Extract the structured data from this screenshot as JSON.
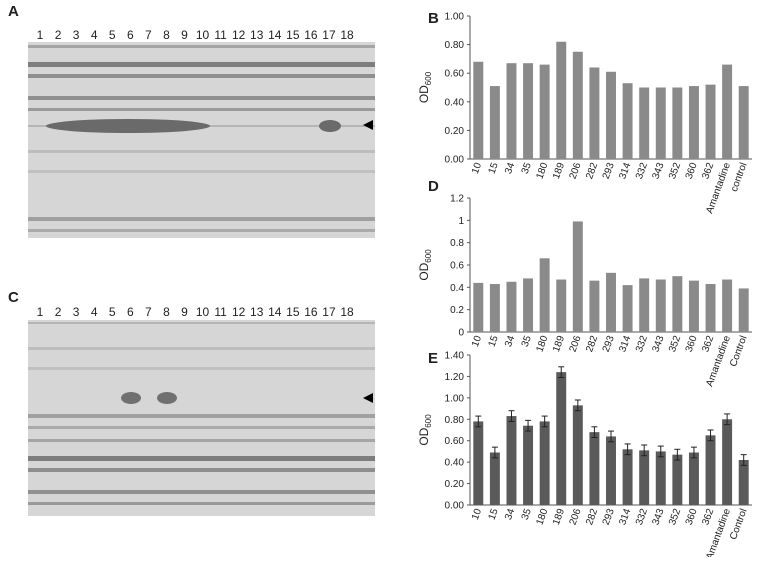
{
  "gels": [
    {
      "label": "A",
      "lanes": [
        "1",
        "2",
        "3",
        "4",
        "5",
        "6",
        "7",
        "8",
        "9",
        "10",
        "11",
        "12",
        "13",
        "14",
        "15",
        "16",
        "17",
        "18"
      ]
    },
    {
      "label": "C",
      "lanes": [
        "1",
        "2",
        "3",
        "4",
        "5",
        "6",
        "7",
        "8",
        "9",
        "10",
        "11",
        "12",
        "13",
        "14",
        "15",
        "16",
        "17",
        "18"
      ]
    }
  ],
  "chart_data": [
    {
      "type": "bar",
      "panel": "B",
      "ylabel": "OD",
      "ylabel_sub": "600",
      "color": "#8a8a8a",
      "categories": [
        "10",
        "15",
        "34",
        "35",
        "180",
        "189",
        "206",
        "282",
        "293",
        "314",
        "332",
        "343",
        "352",
        "360",
        "362",
        "Amantadine",
        "control"
      ],
      "values": [
        0.68,
        0.51,
        0.67,
        0.67,
        0.66,
        0.82,
        0.75,
        0.64,
        0.61,
        0.53,
        0.5,
        0.5,
        0.5,
        0.51,
        0.52,
        0.66,
        0.51
      ],
      "ylim": [
        0,
        1
      ],
      "yticks": [
        {
          "value": 0,
          "label": "0.00"
        },
        {
          "value": 0.2,
          "label": "0.20"
        },
        {
          "value": 0.4,
          "label": "0.40"
        },
        {
          "value": 0.6,
          "label": "0.60"
        },
        {
          "value": 0.8,
          "label": "0.80"
        },
        {
          "value": 1,
          "label": "1.00"
        }
      ]
    },
    {
      "type": "bar",
      "panel": "D",
      "ylabel": "OD",
      "ylabel_sub": "600",
      "color": "#8a8a8a",
      "categories": [
        "10",
        "15",
        "34",
        "35",
        "180",
        "189",
        "206",
        "282",
        "293",
        "314",
        "332",
        "343",
        "352",
        "360",
        "362",
        "Amantadine",
        "Control"
      ],
      "values": [
        0.44,
        0.43,
        0.45,
        0.48,
        0.66,
        0.47,
        0.99,
        0.46,
        0.53,
        0.42,
        0.48,
        0.47,
        0.5,
        0.46,
        0.43,
        0.47,
        0.39
      ],
      "ylim": [
        0,
        1.2
      ],
      "yticks": [
        0,
        0.2,
        0.4,
        0.6,
        0.8,
        1,
        1.2
      ]
    },
    {
      "type": "bar",
      "panel": "E",
      "ylabel": "OD",
      "ylabel_sub": "600",
      "color": "#5a5a5a",
      "categories": [
        "10",
        "15",
        "34",
        "35",
        "180",
        "189",
        "206",
        "282",
        "293",
        "314",
        "332",
        "343",
        "352",
        "360",
        "362",
        "Amantadine",
        "Control"
      ],
      "values": [
        0.78,
        0.49,
        0.83,
        0.74,
        0.78,
        1.24,
        0.93,
        0.68,
        0.64,
        0.52,
        0.51,
        0.5,
        0.47,
        0.49,
        0.65,
        0.8,
        0.42
      ],
      "errors": [
        0.05,
        0.05,
        0.05,
        0.05,
        0.05,
        0.05,
        0.05,
        0.05,
        0.05,
        0.05,
        0.05,
        0.05,
        0.05,
        0.05,
        0.05,
        0.05,
        0.05
      ],
      "ylim": [
        0,
        1.4
      ],
      "yticks": [
        {
          "value": 0,
          "label": "0.00"
        },
        {
          "value": 0.2,
          "label": "0.20"
        },
        {
          "value": 0.4,
          "label": "0.40"
        },
        {
          "value": 0.6,
          "label": "0.60"
        },
        {
          "value": 0.8,
          "label": "0.80"
        },
        {
          "value": 1,
          "label": "1.00"
        },
        {
          "value": 1.2,
          "label": "1.20"
        },
        {
          "value": 1.4,
          "label": "1.40"
        }
      ]
    }
  ]
}
